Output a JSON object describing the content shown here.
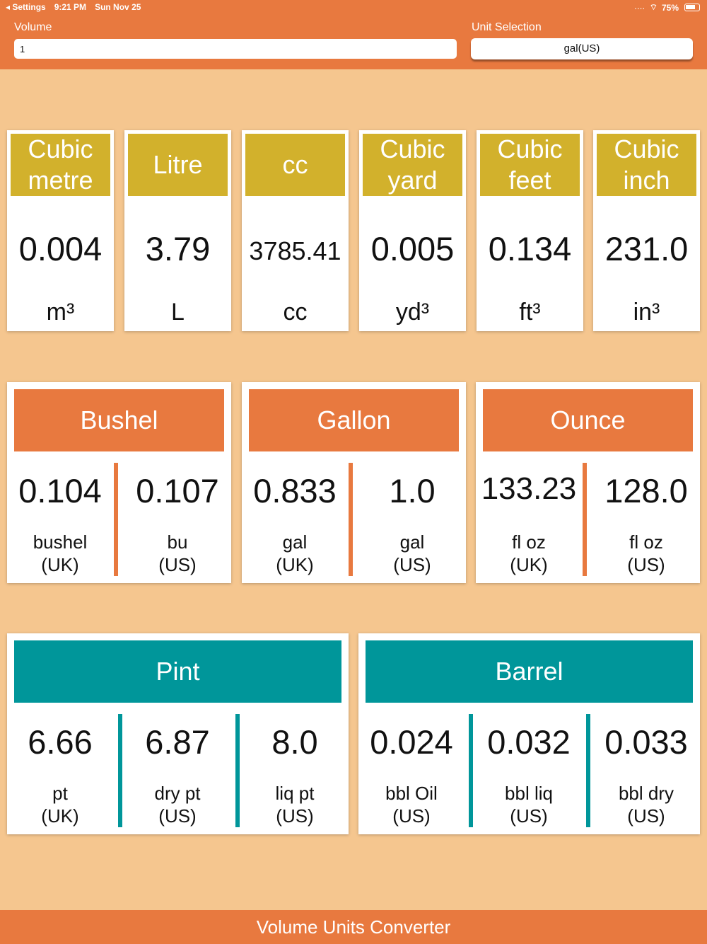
{
  "status": {
    "back_label": "◂ Settings",
    "time": "9:21 PM",
    "date": "Sun Nov 25",
    "signal": "....",
    "wifi": "⌔",
    "battery": "75%"
  },
  "header": {
    "volume_label": "Volume",
    "volume_value": "1",
    "unit_label": "Unit Selection",
    "unit_value": "gal(US)"
  },
  "metric": [
    {
      "name_line1": "Cubic",
      "name_line2": "metre",
      "value": "0.004",
      "unit": "m³"
    },
    {
      "name_line1": "Litre",
      "name_line2": "",
      "value": "3.79",
      "unit": "L"
    },
    {
      "name_line1": "cc",
      "name_line2": "",
      "value": "3785.41",
      "unit": "cc"
    },
    {
      "name_line1": "Cubic",
      "name_line2": "yard",
      "value": "0.005",
      "unit": "yd³"
    },
    {
      "name_line1": "Cubic",
      "name_line2": "feet",
      "value": "0.134",
      "unit": "ft³"
    },
    {
      "name_line1": "Cubic",
      "name_line2": "inch",
      "value": "231.0",
      "unit": "in³"
    }
  ],
  "groups": {
    "bushel": {
      "title": "Bushel",
      "cols": [
        {
          "value": "0.104",
          "line1": "bushel",
          "line2": "(UK)"
        },
        {
          "value": "0.107",
          "line1": "bu",
          "line2": "(US)"
        }
      ]
    },
    "gallon": {
      "title": "Gallon",
      "cols": [
        {
          "value": "0.833",
          "line1": "gal",
          "line2": "(UK)"
        },
        {
          "value": "1.0",
          "line1": "gal",
          "line2": "(US)"
        }
      ]
    },
    "ounce": {
      "title": "Ounce",
      "cols": [
        {
          "value": "133.23",
          "line1": "fl oz",
          "line2": "(UK)"
        },
        {
          "value": "128.0",
          "line1": "fl oz",
          "line2": "(US)"
        }
      ]
    },
    "pint": {
      "title": "Pint",
      "cols": [
        {
          "value": "6.66",
          "line1": "pt",
          "line2": "(UK)"
        },
        {
          "value": "6.87",
          "line1": "dry pt",
          "line2": "(US)"
        },
        {
          "value": "8.0",
          "line1": "liq pt",
          "line2": "(US)"
        }
      ]
    },
    "barrel": {
      "title": "Barrel",
      "cols": [
        {
          "value": "0.024",
          "line1": "bbl Oil",
          "line2": "(US)"
        },
        {
          "value": "0.032",
          "line1": "bbl liq",
          "line2": "(US)"
        },
        {
          "value": "0.033",
          "line1": "bbl dry",
          "line2": "(US)"
        }
      ]
    }
  },
  "footer": {
    "title": "Volume Units Converter"
  },
  "colors": {
    "accent_orange": "#e8793f",
    "gold": "#d2b12c",
    "teal": "#00969a",
    "background": "#f5c68f"
  }
}
